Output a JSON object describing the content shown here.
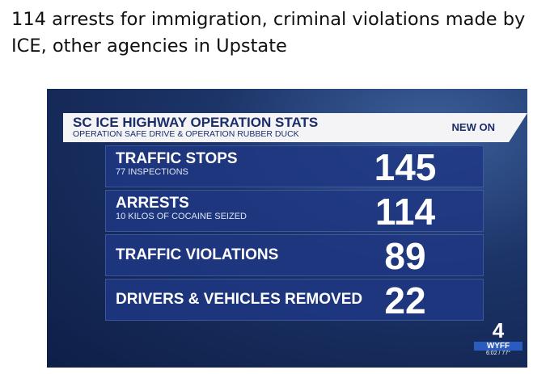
{
  "headline": "114 arrests for immigration, criminal violations made by ICE, other agencies in Upstate",
  "graphic": {
    "title": "SC ICE HIGHWAY OPERATION STATS",
    "subtitle": "OPERATION SAFE DRIVE & OPERATION RUBBER DUCK",
    "badge": "NEW ON",
    "rows": [
      {
        "label": "TRAFFIC STOPS",
        "sublabel": "77 INSPECTIONS",
        "value": "145"
      },
      {
        "label": "ARRESTS",
        "sublabel": "10 KILOS OF COCAINE SEIZED",
        "value": "114"
      },
      {
        "label": "TRAFFIC VIOLATIONS",
        "value": "89"
      },
      {
        "label": "DRIVERS & VEHICLES REMOVED",
        "value": "22"
      }
    ],
    "logo": {
      "channel": "4",
      "station": "WYFF",
      "status": "6:02 / 77°"
    }
  }
}
